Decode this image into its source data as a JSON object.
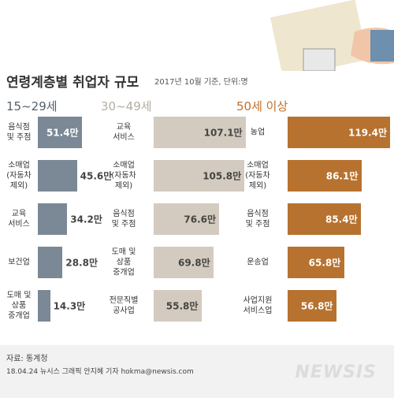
{
  "title": "연령계층별 취업자 규모",
  "subtitle": "2017년 10월 기준, 단위:명",
  "source": "자료: 통계청",
  "credit": "18.04.24 뉴시스 그래픽 안지혜 기자 hokma@newsis.com",
  "logo": "NEWSIS",
  "chart_data": [
    {
      "type": "bar",
      "orientation": "horizontal",
      "title": "15~29세",
      "color": "#7b8895",
      "title_color": "#55616c",
      "categories": [
        "음식점\n및 주점",
        "소매업\n(자동차\n제외)",
        "교육\n서비스",
        "보건업",
        "도매 및\n상품\n중개업"
      ],
      "values": [
        51.4,
        45.6,
        34.2,
        28.8,
        14.3
      ],
      "value_labels": [
        "51.4만",
        "45.6만",
        "34.2만",
        "28.8만",
        "14.3만"
      ]
    },
    {
      "type": "bar",
      "orientation": "horizontal",
      "title": "30~49세",
      "color": "#d3cbbf",
      "title_color": "#b5ada2",
      "categories": [
        "교육\n서비스",
        "소매업\n(자동차\n제외)",
        "음식점\n및 주점",
        "도매 및\n상품\n중개업",
        "전문직별\n공사업"
      ],
      "values": [
        107.1,
        105.8,
        76.6,
        69.8,
        55.8
      ],
      "value_labels": [
        "107.1만",
        "105.8만",
        "76.6만",
        "69.8만",
        "55.8만"
      ]
    },
    {
      "type": "bar",
      "orientation": "horizontal",
      "title": "50세 이상",
      "color": "#b8722f",
      "title_color": "#c0702a",
      "categories": [
        "농업",
        "소매업\n(자동차\n제외)",
        "음식점\n및 주점",
        "운송업",
        "사업지원\n서비스업"
      ],
      "values": [
        119.4,
        86.1,
        85.4,
        65.8,
        56.8
      ],
      "value_labels": [
        "119.4만",
        "86.1만",
        "85.4만",
        "65.8만",
        "56.8만"
      ]
    }
  ]
}
